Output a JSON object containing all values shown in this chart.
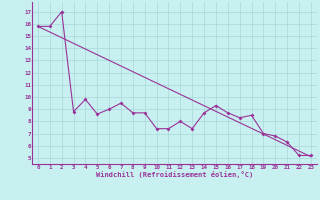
{
  "xlabel": "Windchill (Refroidissement éolien,°C)",
  "bg_color": "#c8f0f0",
  "grid_color": "#a8d8d8",
  "line_color": "#993399",
  "x_ticks": [
    0,
    1,
    2,
    3,
    4,
    5,
    6,
    7,
    8,
    9,
    10,
    11,
    12,
    13,
    14,
    15,
    16,
    17,
    18,
    19,
    20,
    21,
    22,
    23
  ],
  "y_ticks": [
    5,
    6,
    7,
    8,
    9,
    10,
    11,
    12,
    13,
    14,
    15,
    16,
    17
  ],
  "ylim": [
    4.5,
    17.8
  ],
  "xlim": [
    -0.5,
    23.5
  ],
  "zigzag_x": [
    0,
    1,
    2,
    3,
    4,
    5,
    6,
    7,
    8,
    9,
    10,
    11,
    12,
    13,
    14,
    15,
    16,
    17,
    18,
    19,
    20,
    21,
    22,
    23
  ],
  "zigzag_y": [
    15.8,
    15.8,
    17.0,
    8.8,
    9.8,
    8.6,
    9.0,
    9.5,
    8.7,
    8.7,
    7.4,
    7.4,
    8.0,
    7.4,
    8.7,
    9.3,
    8.7,
    8.3,
    8.5,
    7.0,
    6.8,
    6.3,
    5.2,
    5.2
  ],
  "trend_x": [
    0,
    23
  ],
  "trend_y": [
    15.8,
    5.1
  ]
}
